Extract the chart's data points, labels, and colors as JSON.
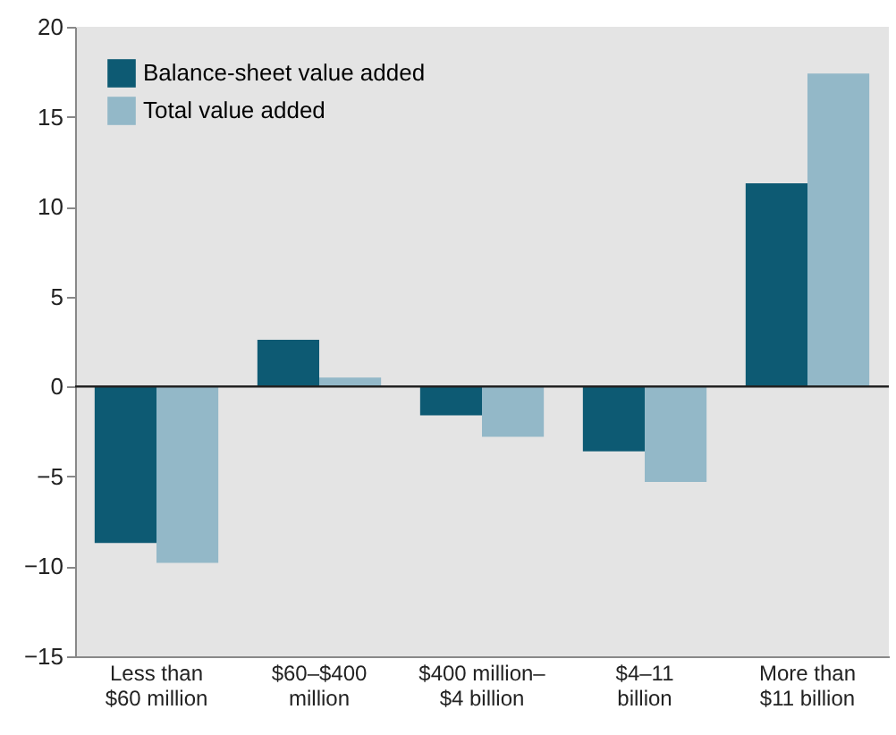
{
  "chart_data": {
    "type": "bar",
    "categories": [
      "Less than\n$60 million",
      "$60–$400\nmillion",
      "$400 million–\n$4 billion",
      "$4–11\nbillion",
      "More than\n$11 billion"
    ],
    "series": [
      {
        "name": "Balance-sheet value added",
        "color": "#0d5a73",
        "values": [
          -8.7,
          2.6,
          -1.6,
          -3.6,
          11.3
        ]
      },
      {
        "name": "Total value added",
        "color": "#93b8c8",
        "values": [
          -9.8,
          0.5,
          -2.8,
          -5.3,
          17.4
        ]
      }
    ],
    "ylim": [
      -15,
      20
    ],
    "yticks": [
      -15,
      -10,
      -5,
      0,
      5,
      10,
      15,
      20
    ],
    "ref_lines": [
      {
        "axis": "y",
        "value": 0
      }
    ],
    "grid": false,
    "legend": "top left"
  }
}
